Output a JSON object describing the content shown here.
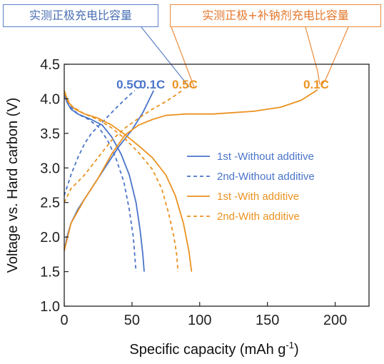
{
  "callouts": {
    "blue": "实测正极充电比容量",
    "orange": "实测正极+补钠剂充电比容量"
  },
  "colors": {
    "blue": "#4a74c9",
    "orange": "#eb9220",
    "callout_blue": "#5b7fc7",
    "callout_orange": "#ec8a3a"
  },
  "chart_data": {
    "type": "line",
    "xlabel": "Specific capacity (mAh g",
    "xlabel_sup": "-1",
    "xlabel_end": ")",
    "ylabel": "Voltage vs. Hard carbon (V)",
    "xlim": [
      0,
      225
    ],
    "ylim": [
      1.0,
      4.5
    ],
    "x_ticks": [
      "0",
      "50",
      "100",
      "150",
      "200"
    ],
    "y_ticks": [
      "1.0",
      "1.5",
      "2.0",
      "2.5",
      "3.0",
      "3.5",
      "4.0",
      "4.5"
    ],
    "legend_position": "right",
    "rate_labels": [
      {
        "text": "0.5C",
        "x": 48,
        "y": 4.21,
        "color": "blue"
      },
      {
        "text": "0.1C",
        "x": 65,
        "y": 4.21,
        "color": "blue"
      },
      {
        "text": "0.5C",
        "x": 89,
        "y": 4.21,
        "color": "orange"
      },
      {
        "text": "0.1C",
        "x": 186,
        "y": 4.21,
        "color": "orange"
      }
    ],
    "series": [
      {
        "name": "1st -Without additive",
        "color": "blue",
        "dash": false,
        "charge": [
          [
            0,
            1.8
          ],
          [
            2,
            2.0
          ],
          [
            5,
            2.2
          ],
          [
            10,
            2.4
          ],
          [
            20,
            2.7
          ],
          [
            30,
            3.0
          ],
          [
            40,
            3.3
          ],
          [
            50,
            3.55
          ],
          [
            58,
            3.8
          ],
          [
            63,
            4.0
          ],
          [
            66,
            4.12
          ]
        ],
        "discharge": [
          [
            0,
            4.08
          ],
          [
            2,
            3.95
          ],
          [
            5,
            3.85
          ],
          [
            10,
            3.78
          ],
          [
            20,
            3.7
          ],
          [
            28,
            3.62
          ],
          [
            35,
            3.45
          ],
          [
            42,
            3.2
          ],
          [
            48,
            2.9
          ],
          [
            53,
            2.5
          ],
          [
            56,
            2.1
          ],
          [
            58,
            1.75
          ],
          [
            59,
            1.5
          ]
        ]
      },
      {
        "name": "2nd-Without additive",
        "color": "blue",
        "dash": true,
        "charge": [
          [
            0,
            2.6
          ],
          [
            5,
            2.9
          ],
          [
            10,
            3.15
          ],
          [
            15,
            3.35
          ],
          [
            20,
            3.5
          ],
          [
            30,
            3.7
          ],
          [
            40,
            3.9
          ],
          [
            48,
            4.05
          ],
          [
            52,
            4.12
          ]
        ],
        "discharge": [
          [
            0,
            4.05
          ],
          [
            5,
            3.88
          ],
          [
            10,
            3.78
          ],
          [
            18,
            3.7
          ],
          [
            25,
            3.6
          ],
          [
            32,
            3.4
          ],
          [
            38,
            3.15
          ],
          [
            44,
            2.8
          ],
          [
            48,
            2.4
          ],
          [
            51,
            2.0
          ],
          [
            52,
            1.75
          ],
          [
            53,
            1.5
          ]
        ]
      },
      {
        "name": "1st -With additive",
        "color": "orange",
        "dash": false,
        "charge": [
          [
            0,
            1.8
          ],
          [
            5,
            2.2
          ],
          [
            15,
            2.55
          ],
          [
            25,
            2.85
          ],
          [
            35,
            3.2
          ],
          [
            45,
            3.48
          ],
          [
            55,
            3.62
          ],
          [
            65,
            3.7
          ],
          [
            75,
            3.76
          ],
          [
            90,
            3.78
          ],
          [
            110,
            3.78
          ],
          [
            140,
            3.82
          ],
          [
            160,
            3.88
          ],
          [
            175,
            3.98
          ],
          [
            183,
            4.08
          ],
          [
            187,
            4.13
          ]
        ],
        "discharge": [
          [
            0,
            4.12
          ],
          [
            3,
            3.95
          ],
          [
            8,
            3.85
          ],
          [
            15,
            3.78
          ],
          [
            25,
            3.72
          ],
          [
            35,
            3.62
          ],
          [
            45,
            3.48
          ],
          [
            55,
            3.32
          ],
          [
            65,
            3.15
          ],
          [
            75,
            2.9
          ],
          [
            82,
            2.6
          ],
          [
            88,
            2.2
          ],
          [
            92,
            1.8
          ],
          [
            94,
            1.5
          ]
        ]
      },
      {
        "name": "2nd-With additive",
        "color": "orange",
        "dash": true,
        "charge": [
          [
            0,
            2.5
          ],
          [
            5,
            2.7
          ],
          [
            15,
            2.9
          ],
          [
            25,
            3.15
          ],
          [
            35,
            3.4
          ],
          [
            45,
            3.58
          ],
          [
            55,
            3.72
          ],
          [
            65,
            3.85
          ],
          [
            75,
            3.96
          ],
          [
            82,
            4.05
          ],
          [
            87,
            4.12
          ]
        ],
        "discharge": [
          [
            0,
            4.08
          ],
          [
            5,
            3.9
          ],
          [
            15,
            3.78
          ],
          [
            25,
            3.7
          ],
          [
            35,
            3.58
          ],
          [
            45,
            3.42
          ],
          [
            55,
            3.22
          ],
          [
            65,
            2.98
          ],
          [
            72,
            2.7
          ],
          [
            77,
            2.35
          ],
          [
            81,
            2.0
          ],
          [
            83,
            1.75
          ],
          [
            84,
            1.5
          ]
        ]
      }
    ]
  }
}
